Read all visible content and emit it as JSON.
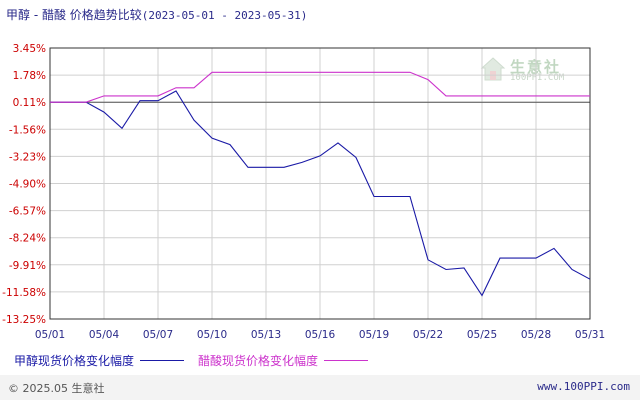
{
  "header": {
    "title": "甲醇 - 醋酸 价格趋势比较",
    "date_range": "(2023-05-01 - 2023-05-31)"
  },
  "watermark": {
    "brand": "生意社",
    "site": "100PPI.COM"
  },
  "footer": {
    "copyright": "© 2025.05 生意社",
    "url": "www.100PPI.com"
  },
  "colors": {
    "series1": "#1a1aa6",
    "series2": "#cc33cc",
    "axis": "#333333",
    "grid": "#d0d0d0",
    "ylabel": "#cc0000",
    "xlabel": "#2a2a8a"
  },
  "chart_data": {
    "type": "line",
    "title": "甲醇 - 醋酸 价格趋势比较",
    "x": [
      "05/01",
      "05/02",
      "05/03",
      "05/04",
      "05/05",
      "05/06",
      "05/07",
      "05/08",
      "05/09",
      "05/10",
      "05/11",
      "05/12",
      "05/13",
      "05/14",
      "05/15",
      "05/16",
      "05/17",
      "05/18",
      "05/19",
      "05/20",
      "05/21",
      "05/22",
      "05/23",
      "05/24",
      "05/25",
      "05/26",
      "05/27",
      "05/28",
      "05/29",
      "05/30",
      "05/31"
    ],
    "x_ticks": [
      "05/01",
      "05/04",
      "05/07",
      "05/10",
      "05/13",
      "05/16",
      "05/19",
      "05/22",
      "05/25",
      "05/28",
      "05/31"
    ],
    "y_ticks": [
      "3.45%",
      "1.78%",
      "0.11%",
      "-1.56%",
      "-3.23%",
      "-4.90%",
      "-6.57%",
      "-8.24%",
      "-9.91%",
      "-11.58%",
      "-13.25%"
    ],
    "ylim": [
      -13.25,
      3.45
    ],
    "grid": true,
    "series": [
      {
        "name": "甲醇现货价格变化幅度",
        "values": [
          0.11,
          0.11,
          0.11,
          -0.5,
          -1.5,
          0.2,
          0.2,
          0.8,
          -1.0,
          -2.1,
          -2.5,
          -3.9,
          -3.9,
          -3.9,
          -3.6,
          -3.2,
          -2.4,
          -3.3,
          -5.7,
          -5.7,
          -5.7,
          -9.6,
          -10.2,
          -10.1,
          -11.8,
          -9.5,
          -9.5,
          -9.5,
          -8.9,
          -10.2,
          -10.8
        ]
      },
      {
        "name": "醋酸现货价格变化幅度",
        "values": [
          0.11,
          0.11,
          0.11,
          0.5,
          0.5,
          0.5,
          0.5,
          1.0,
          1.0,
          1.95,
          1.95,
          1.95,
          1.95,
          1.95,
          1.95,
          1.95,
          1.95,
          1.95,
          1.95,
          1.95,
          1.95,
          1.5,
          0.5,
          0.5,
          0.5,
          0.5,
          0.5,
          0.5,
          0.5,
          0.5,
          0.5
        ]
      }
    ]
  }
}
